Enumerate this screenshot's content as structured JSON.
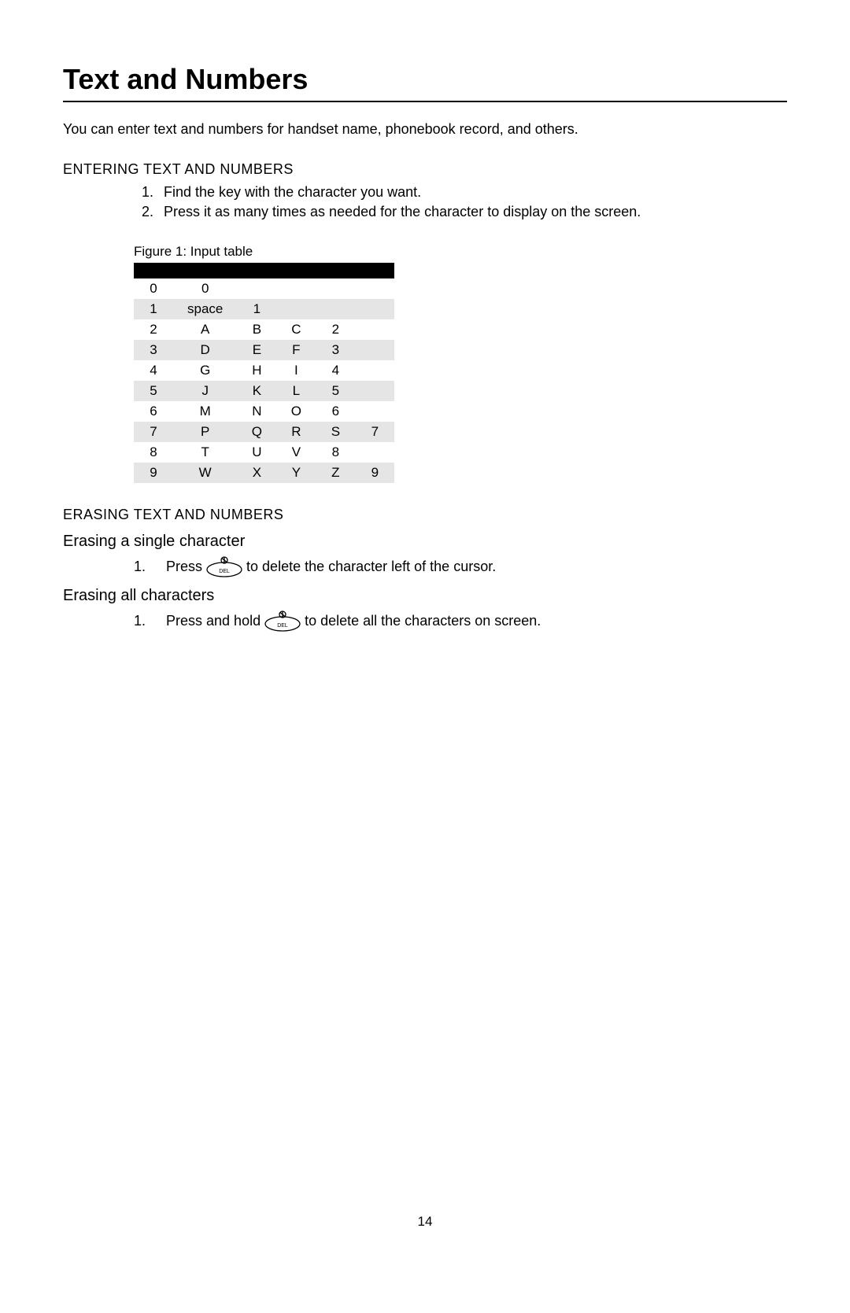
{
  "title": "Text and Numbers",
  "intro": "You can enter text and numbers for handset name, phonebook record, and others.",
  "entering": {
    "header": "ENTERING TEXT AND NUMBERS",
    "steps": [
      "Find the key with the character you want.",
      "Press it as many times as needed for the character to display on the screen."
    ]
  },
  "figure": {
    "caption": "Figure 1: Input table",
    "colors": {
      "header_bg": "#000000",
      "row_odd_bg": "#e5e5e5",
      "row_even_bg": "#ffffff"
    },
    "column_count": 6,
    "rows": [
      [
        "0",
        "0",
        "",
        "",
        "",
        ""
      ],
      [
        "1",
        "space",
        "1",
        "",
        "",
        ""
      ],
      [
        "2",
        "A",
        "B",
        "C",
        "2",
        ""
      ],
      [
        "3",
        "D",
        "E",
        "F",
        "3",
        ""
      ],
      [
        "4",
        "G",
        "H",
        "I",
        "4",
        ""
      ],
      [
        "5",
        "J",
        "K",
        "L",
        "5",
        ""
      ],
      [
        "6",
        "M",
        "N",
        "O",
        "6",
        ""
      ],
      [
        "7",
        "P",
        "Q",
        "R",
        "S",
        "7"
      ],
      [
        "8",
        "T",
        "U",
        "V",
        "8",
        ""
      ],
      [
        "9",
        "W",
        "X",
        "Y",
        "Z",
        "9"
      ]
    ]
  },
  "erasing": {
    "header": "ERASING TEXT AND NUMBERS",
    "single": {
      "title": "Erasing a single character",
      "step_num": "1.",
      "before": "Press",
      "after": "to delete the character left of the cursor."
    },
    "all": {
      "title": "Erasing all characters",
      "step_num": "1.",
      "before": "Press and hold",
      "after": "to delete all the characters on screen."
    },
    "del_label": "DEL"
  },
  "page_number": "14"
}
